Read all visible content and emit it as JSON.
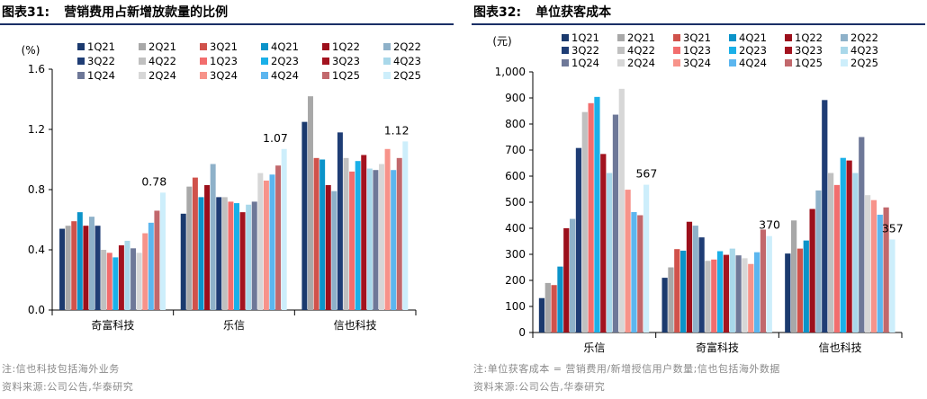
{
  "left": {
    "title_number": "图表31:",
    "title_text": "营销费用占新增放款量的比例",
    "note": "注:信也科技包括海外业务",
    "source": "资料来源:公司公告,华泰研究"
  },
  "right": {
    "title_number": "图表32:",
    "title_text": "单位获客成本",
    "note": "注:单位获客成本 = 营销费用/新增授信用户数量;信也包括海外数据",
    "source": "资料来源:公司公告,华泰研究"
  },
  "colors": [
    "#1b3a6e",
    "#a8a8a8",
    "#d0524b",
    "#0b93c9",
    "#9c0f1b",
    "#8eb1c9",
    "#1f3d75",
    "#c0c0c0",
    "#f26d6d",
    "#1ab0e8",
    "#a3131f",
    "#a9d8ea",
    "#6e7898",
    "#d7d7d7",
    "#f7938a",
    "#5cb6ef",
    "#c2686c",
    "#cdeefb"
  ],
  "chart_data": [
    {
      "type": "bar",
      "unit": "(%)",
      "categories": [
        "奇富科技",
        "乐信",
        "信也科技"
      ],
      "ylim": [
        0,
        1.6
      ],
      "yticks": [
        "0.0",
        "0.4",
        "0.8",
        "1.2",
        "1.6"
      ],
      "ytick_values": [
        0,
        0.4,
        0.8,
        1.2,
        1.6
      ],
      "legend_position": "top-left",
      "legend_columns": 6,
      "series": [
        {
          "name": "1Q21",
          "values": [
            0.54,
            0.64,
            1.25
          ]
        },
        {
          "name": "2Q21",
          "values": [
            0.56,
            0.82,
            1.42
          ]
        },
        {
          "name": "3Q21",
          "values": [
            0.59,
            0.88,
            1.01
          ]
        },
        {
          "name": "4Q21",
          "values": [
            0.65,
            0.75,
            1.0
          ]
        },
        {
          "name": "1Q22",
          "values": [
            0.56,
            0.83,
            0.83
          ]
        },
        {
          "name": "2Q22",
          "values": [
            0.62,
            0.97,
            0.79
          ]
        },
        {
          "name": "3Q22",
          "values": [
            0.56,
            0.75,
            1.18
          ]
        },
        {
          "name": "4Q22",
          "values": [
            0.4,
            0.75,
            1.01
          ]
        },
        {
          "name": "1Q23",
          "values": [
            0.38,
            0.72,
            0.92
          ]
        },
        {
          "name": "2Q23",
          "values": [
            0.35,
            0.71,
            0.99
          ]
        },
        {
          "name": "3Q23",
          "values": [
            0.43,
            0.65,
            1.03
          ]
        },
        {
          "name": "4Q23",
          "values": [
            0.46,
            0.7,
            0.94
          ]
        },
        {
          "name": "1Q24",
          "values": [
            0.41,
            0.72,
            0.93
          ]
        },
        {
          "name": "2Q24",
          "values": [
            0.38,
            0.91,
            0.97
          ]
        },
        {
          "name": "3Q24",
          "values": [
            0.51,
            0.86,
            1.07
          ]
        },
        {
          "name": "4Q24",
          "values": [
            0.58,
            0.9,
            0.93
          ]
        },
        {
          "name": "1Q25",
          "values": [
            0.66,
            0.96,
            1.01
          ]
        },
        {
          "name": "2Q25",
          "values": [
            0.78,
            1.07,
            1.12
          ]
        }
      ],
      "data_labels": [
        {
          "text": "0.78",
          "category": 0,
          "series": 17
        },
        {
          "text": "1.07",
          "category": 1,
          "series": 17
        },
        {
          "text": "1.12",
          "category": 2,
          "series": 17
        }
      ]
    },
    {
      "type": "bar",
      "unit": "(元)",
      "categories": [
        "乐信",
        "奇富科技",
        "信也科技"
      ],
      "ylim": [
        0,
        1000
      ],
      "yticks": [
        "0",
        "100",
        "200",
        "300",
        "400",
        "500",
        "600",
        "700",
        "800",
        "900",
        "1,000"
      ],
      "ytick_values": [
        0,
        100,
        200,
        300,
        400,
        500,
        600,
        700,
        800,
        900,
        1000
      ],
      "legend_position": "top",
      "legend_columns": 6,
      "series": [
        {
          "name": "1Q21",
          "values": [
            132,
            210,
            303
          ]
        },
        {
          "name": "2Q21",
          "values": [
            190,
            250,
            430
          ]
        },
        {
          "name": "3Q21",
          "values": [
            182,
            320,
            322
          ]
        },
        {
          "name": "4Q21",
          "values": [
            253,
            314,
            353
          ]
        },
        {
          "name": "1Q22",
          "values": [
            400,
            425,
            474
          ]
        },
        {
          "name": "2Q22",
          "values": [
            436,
            410,
            545
          ]
        },
        {
          "name": "3Q22",
          "values": [
            708,
            365,
            892
          ]
        },
        {
          "name": "4Q22",
          "values": [
            846,
            275,
            612
          ]
        },
        {
          "name": "1Q23",
          "values": [
            880,
            280,
            566
          ]
        },
        {
          "name": "2Q23",
          "values": [
            904,
            312,
            670
          ]
        },
        {
          "name": "3Q23",
          "values": [
            685,
            298,
            660
          ]
        },
        {
          "name": "4Q23",
          "values": [
            612,
            322,
            612
          ]
        },
        {
          "name": "1Q24",
          "values": [
            836,
            296,
            750
          ]
        },
        {
          "name": "2Q24",
          "values": [
            935,
            285,
            527
          ]
        },
        {
          "name": "3Q24",
          "values": [
            548,
            263,
            508
          ]
        },
        {
          "name": "4Q24",
          "values": [
            462,
            308,
            452
          ]
        },
        {
          "name": "1Q25",
          "values": [
            450,
            395,
            480
          ]
        },
        {
          "name": "2Q25",
          "values": [
            567,
            370,
            357
          ]
        }
      ],
      "data_labels": [
        {
          "text": "567",
          "category": 0,
          "series": 17
        },
        {
          "text": "370",
          "category": 1,
          "series": 17
        },
        {
          "text": "357",
          "category": 2,
          "series": 17
        }
      ]
    }
  ]
}
